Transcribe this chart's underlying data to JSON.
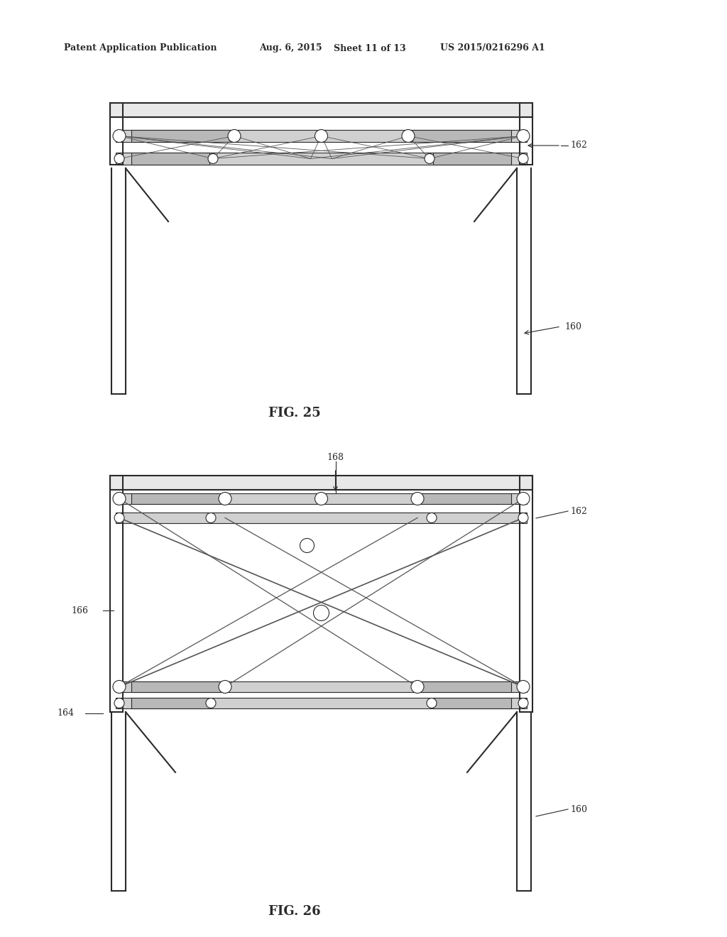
{
  "background_color": "#ffffff",
  "header_text": "Patent Application Publication",
  "header_date": "Aug. 6, 2015",
  "header_sheet": "Sheet 11 of 13",
  "header_patent": "US 2015/0216296 A1",
  "fig25_title": "FIG. 25",
  "fig26_title": "FIG. 26",
  "line_color": "#2a2a2a",
  "line_width": 1.5,
  "thin_line": 0.8,
  "label_color": "#333333",
  "label_fontsize": 10
}
